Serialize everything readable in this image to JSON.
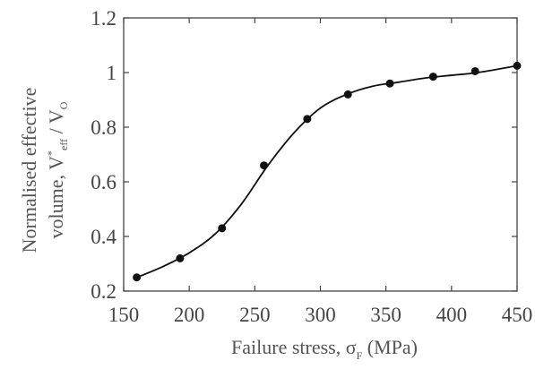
{
  "chart_data": {
    "type": "scatter",
    "title": "",
    "xlim": [
      150,
      450
    ],
    "ylim": [
      0.2,
      1.2
    ],
    "x_ticks": [
      150,
      200,
      250,
      300,
      350,
      400,
      450
    ],
    "y_ticks": [
      0.2,
      0.4,
      0.6,
      0.8,
      1.0,
      1.2
    ],
    "x_tick_labels": [
      "150",
      "200",
      "250",
      "300",
      "350",
      "400",
      "450"
    ],
    "y_tick_labels": [
      "0.2",
      "0.4",
      "0.6",
      "0.8",
      "1",
      "1.2"
    ],
    "xlabel": "Failure stress, σF (MPa)",
    "ylabel": "Normalised effective volume, V*eff / VO",
    "series": [
      {
        "type": "scatter",
        "x": [
          160,
          193,
          225,
          257,
          290,
          321,
          353,
          386,
          418,
          450
        ],
        "y": [
          0.25,
          0.32,
          0.43,
          0.66,
          0.83,
          0.92,
          0.96,
          0.985,
          1.005,
          1.025
        ]
      },
      {
        "type": "line",
        "x": [
          160,
          180,
          200,
          220,
          240,
          260,
          280,
          300,
          320,
          340,
          360,
          380,
          400,
          420,
          450
        ],
        "y": [
          0.25,
          0.29,
          0.34,
          0.41,
          0.52,
          0.66,
          0.78,
          0.87,
          0.92,
          0.95,
          0.965,
          0.98,
          0.99,
          1.0,
          1.025
        ]
      }
    ],
    "grid": false,
    "legend": "none",
    "colors": {
      "marks": "#111111",
      "axes": "#444444",
      "text": "#555555"
    }
  },
  "labels": {
    "x_title_main": "Failure stress, σ",
    "x_title_sub": "F",
    "x_title_units": " (MPa)",
    "y_title_line1": "Normalised effective",
    "y_title_line2_a": "volume, V",
    "y_title_line2_sup": "*",
    "y_title_line2_sub": "eff",
    "y_title_line2_b": " / V",
    "y_title_line2_sub2": "O"
  }
}
